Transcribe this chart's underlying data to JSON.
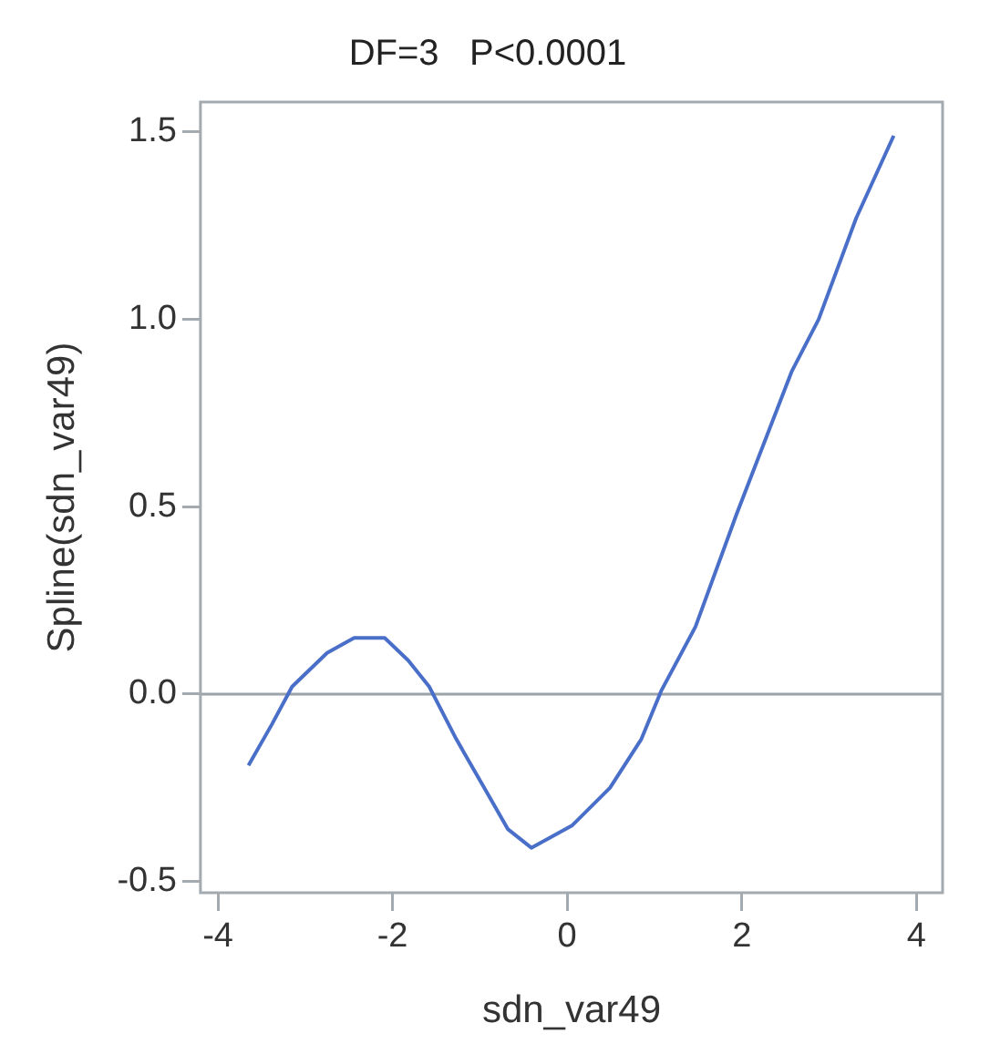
{
  "chart_data": {
    "type": "line",
    "title": "DF=3   P<0.0001",
    "xlabel": "sdn_var49",
    "ylabel": "Spline(sdn_var49)",
    "x": [
      -3.65,
      -3.38,
      -3.15,
      -2.75,
      -2.44,
      -2.09,
      -1.82,
      -1.58,
      -1.27,
      -0.95,
      -0.68,
      -0.41,
      0.06,
      0.49,
      0.85,
      1.08,
      1.47,
      1.94,
      2.57,
      2.88,
      3.31,
      3.74
    ],
    "series": [
      {
        "color": "#4a6fc8",
        "values": [
          -0.19,
          -0.08,
          0.02,
          0.11,
          0.15,
          0.15,
          0.09,
          0.02,
          -0.12,
          -0.25,
          -0.36,
          -0.41,
          -0.35,
          -0.25,
          -0.12,
          0.01,
          0.18,
          0.48,
          0.86,
          1.0,
          1.27,
          1.49
        ]
      }
    ],
    "xlim": [
      -4.2,
      4.3
    ],
    "xticks": [
      -4,
      -2,
      0,
      2,
      4
    ],
    "ylim": [
      -0.53,
      1.58
    ],
    "yticks": [
      -0.5,
      {
        "value": 0,
        "label": "0.0"
      },
      0.5,
      {
        "value": 1,
        "label": "1.0"
      },
      1.5
    ],
    "ref_lines": [
      {
        "axis": "y",
        "value": 0,
        "color": "#9aa3a8"
      }
    ],
    "grid": false,
    "legend": false,
    "marker": "none",
    "line_style": "solid"
  }
}
